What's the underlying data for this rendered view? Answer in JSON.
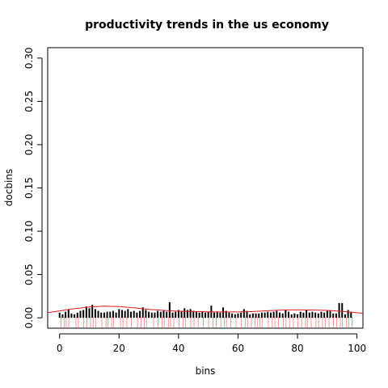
{
  "chart_data": {
    "type": "bar",
    "title": "productivity trends in the us economy",
    "xlabel": "bins",
    "ylabel": "docbins",
    "xlim": [
      -4,
      102
    ],
    "ylim": [
      -0.012,
      0.312
    ],
    "x_ticks": [
      0,
      20,
      40,
      60,
      80,
      100
    ],
    "x_tick_labels": [
      "0",
      "20",
      "40",
      "60",
      "80",
      "100"
    ],
    "y_ticks": [
      0.0,
      0.05,
      0.1,
      0.15,
      0.2,
      0.25,
      0.3
    ],
    "y_tick_labels": [
      "0.00",
      "0.05",
      "0.10",
      "0.15",
      "0.20",
      "0.25",
      "0.30"
    ],
    "bar_color": "#000000",
    "curve_color": "#e41a1c",
    "rug_color": "#ff8080",
    "bars": {
      "x": [
        0,
        1,
        2,
        3,
        4,
        5,
        6,
        7,
        8,
        9,
        10,
        11,
        12,
        13,
        14,
        15,
        16,
        17,
        18,
        19,
        20,
        21,
        22,
        23,
        24,
        25,
        26,
        27,
        28,
        29,
        30,
        31,
        32,
        33,
        34,
        35,
        36,
        37,
        38,
        39,
        40,
        41,
        42,
        43,
        44,
        45,
        46,
        47,
        48,
        49,
        50,
        51,
        52,
        53,
        54,
        55,
        56,
        57,
        58,
        59,
        60,
        61,
        62,
        63,
        64,
        65,
        66,
        67,
        68,
        69,
        70,
        71,
        72,
        73,
        74,
        75,
        76,
        77,
        78,
        79,
        80,
        81,
        82,
        83,
        84,
        85,
        86,
        87,
        88,
        89,
        90,
        91,
        92,
        93,
        94,
        95,
        96,
        97,
        98
      ],
      "values": [
        0.006,
        0.004,
        0.007,
        0.01,
        0.005,
        0.004,
        0.006,
        0.008,
        0.009,
        0.013,
        0.011,
        0.015,
        0.01,
        0.008,
        0.006,
        0.006,
        0.007,
        0.007,
        0.008,
        0.006,
        0.01,
        0.009,
        0.008,
        0.01,
        0.007,
        0.008,
        0.006,
        0.008,
        0.012,
        0.009,
        0.007,
        0.006,
        0.006,
        0.008,
        0.007,
        0.008,
        0.007,
        0.018,
        0.006,
        0.007,
        0.009,
        0.008,
        0.011,
        0.009,
        0.01,
        0.008,
        0.007,
        0.006,
        0.007,
        0.006,
        0.007,
        0.014,
        0.006,
        0.007,
        0.006,
        0.012,
        0.008,
        0.006,
        0.005,
        0.004,
        0.005,
        0.006,
        0.01,
        0.008,
        0.004,
        0.005,
        0.005,
        0.005,
        0.006,
        0.006,
        0.007,
        0.006,
        0.007,
        0.008,
        0.006,
        0.005,
        0.009,
        0.007,
        0.004,
        0.005,
        0.004,
        0.007,
        0.006,
        0.009,
        0.006,
        0.007,
        0.006,
        0.005,
        0.007,
        0.006,
        0.008,
        0.008,
        0.005,
        0.005,
        0.017,
        0.017,
        0.004,
        0.009,
        0.007
      ]
    },
    "curve": {
      "x": [
        -4,
        0,
        5,
        10,
        15,
        20,
        25,
        30,
        35,
        40,
        45,
        50,
        55,
        60,
        65,
        70,
        75,
        80,
        85,
        90,
        95,
        100,
        102
      ],
      "y": [
        0.006,
        0.008,
        0.0105,
        0.0125,
        0.0135,
        0.013,
        0.0115,
        0.0098,
        0.0085,
        0.0076,
        0.0072,
        0.007,
        0.0068,
        0.0068,
        0.0072,
        0.0082,
        0.009,
        0.0092,
        0.009,
        0.0085,
        0.0075,
        0.0058,
        0.0052
      ]
    },
    "rug": [
      0.5,
      1.5,
      2.2,
      3.1,
      5.5,
      6.3,
      8.1,
      9.2,
      10.4,
      11.3,
      12.1,
      14.2,
      15.6,
      16.3,
      17.5,
      18.1,
      20.5,
      21.3,
      22.6,
      24.1,
      26.2,
      27.4,
      28.5,
      29.2,
      31.6,
      33.1,
      34.5,
      35.2,
      36.7,
      37.3,
      38.4,
      40.2,
      41.5,
      42.3,
      44.1,
      45.2,
      46.6,
      48.3,
      50.1,
      51.6,
      52.7,
      54.2,
      55.4,
      56.1,
      57.6,
      59.3,
      61.1,
      62.4,
      63.2,
      64.5,
      65.7,
      66.6,
      67.4,
      68.1,
      70.2,
      71.5,
      72.4,
      73.6,
      75.2,
      76.1,
      77.3,
      78.6,
      80.1,
      81.4,
      82.7,
      83.3,
      84.6,
      86.2,
      87.1,
      88.4,
      89.3,
      90.6,
      92.1,
      93.2,
      94.4,
      95.1,
      96.5,
      97.2,
      98.3
    ]
  }
}
